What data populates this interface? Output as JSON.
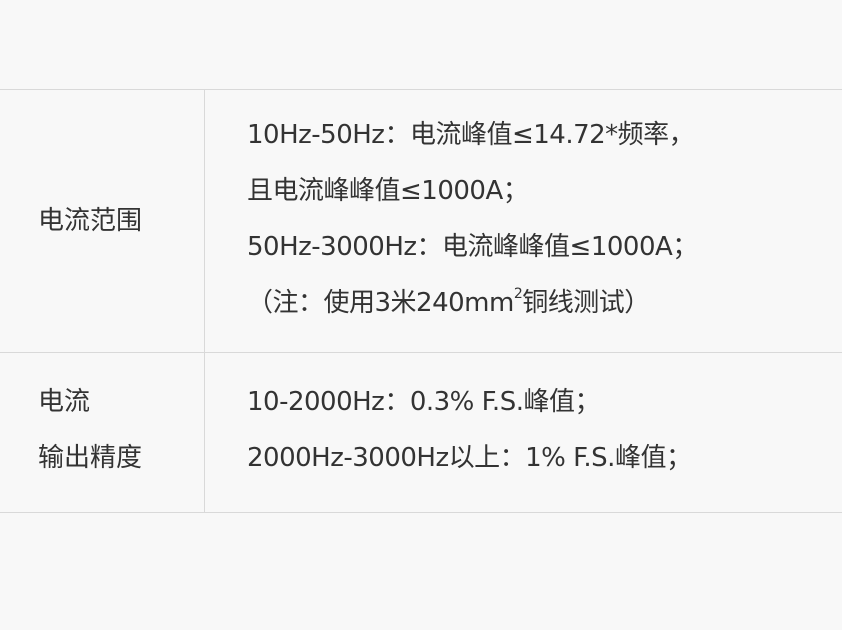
{
  "rows": [
    {
      "label_lines": [
        "电流范围"
      ],
      "content_lines": [
        "10Hz-50Hz：电流峰值≤14.72*频率，",
        "且电流峰峰值≤1000A；",
        "50Hz-3000Hz：电流峰峰值≤1000A；"
      ],
      "note": {
        "before": "（注：使用3米240mm",
        "sup": "2",
        "after": "铜线测试）"
      }
    },
    {
      "label_lines": [
        "电流",
        "输出精度"
      ],
      "content_lines": [
        "10-2000Hz：0.3% F.S.峰值；",
        "2000Hz-3000Hz以上：1% F.S.峰值；"
      ]
    }
  ]
}
